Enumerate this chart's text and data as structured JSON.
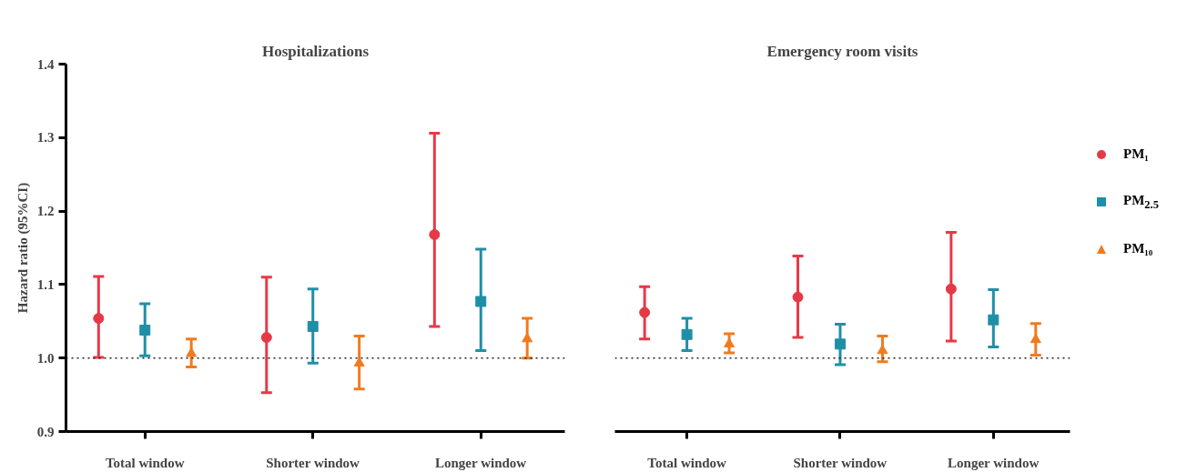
{
  "chart_data": [
    {
      "type": "scatter",
      "title": "Hospitalizations",
      "ylabel": "Hazard ratio (95%CI)",
      "categories": [
        "Total window",
        "Shorter window",
        "Longer window"
      ],
      "ylim": [
        0.9,
        1.4
      ],
      "yticks": [
        {
          "value": 0.9,
          "label": "0.9"
        },
        {
          "value": 1.0,
          "label": "1.0"
        },
        {
          "value": 1.1,
          "label": "1.1"
        },
        {
          "value": 1.2,
          "label": "1.2"
        },
        {
          "value": 1.3,
          "label": "1.3"
        },
        {
          "value": 1.4,
          "label": "1.4"
        }
      ],
      "grid": false,
      "ref_lines": [
        {
          "axis": "y",
          "value": 1.0,
          "label": null,
          "color": "#222222",
          "line_style": "dotted"
        }
      ],
      "series": [
        {
          "color": "#e63946",
          "marker": "circle",
          "values": [
            1.054,
            1.028,
            1.168
          ],
          "errors": [
            [
              1.001,
              1.111
            ],
            [
              0.953,
              1.11
            ],
            [
              1.043,
              1.306
            ]
          ]
        },
        {
          "color": "#1f8fa8",
          "marker": "square",
          "values": [
            1.038,
            1.043,
            1.077
          ],
          "errors": [
            [
              1.003,
              1.074
            ],
            [
              0.993,
              1.094
            ],
            [
              1.01,
              1.148
            ]
          ]
        },
        {
          "color": "#f07b1f",
          "marker": "triangle",
          "values": [
            1.006,
            0.993,
            1.026
          ],
          "errors": [
            [
              0.988,
              1.026
            ],
            [
              0.958,
              1.03
            ],
            [
              1.0,
              1.054
            ]
          ]
        }
      ]
    },
    {
      "type": "scatter",
      "title": "Emergency room visits",
      "categories": [
        "Total window",
        "Shorter window",
        "Longer window"
      ],
      "ylim": [
        0.9,
        1.4
      ],
      "tick_labels": "x",
      "grid": false,
      "legend": "right",
      "ref_lines": [
        {
          "axis": "y",
          "value": 1.0,
          "label": null,
          "color": "#222222",
          "line_style": "dotted"
        }
      ],
      "series": [
        {
          "name": "PM₁",
          "color": "#e63946",
          "marker": "circle",
          "values": [
            1.062,
            1.083,
            1.094
          ],
          "errors": [
            [
              1.026,
              1.097
            ],
            [
              1.028,
              1.139
            ],
            [
              1.023,
              1.171
            ]
          ]
        },
        {
          "name": "PM$_{2.5}$",
          "color": "#1f8fa8",
          "marker": "square",
          "values": [
            1.032,
            1.019,
            1.052
          ],
          "errors": [
            [
              1.01,
              1.054
            ],
            [
              0.991,
              1.046
            ],
            [
              1.015,
              1.093
            ]
          ]
        },
        {
          "name": "PM₁₀",
          "color": "#f07b1f",
          "marker": "triangle",
          "values": [
            1.019,
            1.01,
            1.025
          ],
          "errors": [
            [
              1.007,
              1.033
            ],
            [
              0.995,
              1.03
            ],
            [
              1.004,
              1.047
            ]
          ]
        }
      ]
    }
  ]
}
